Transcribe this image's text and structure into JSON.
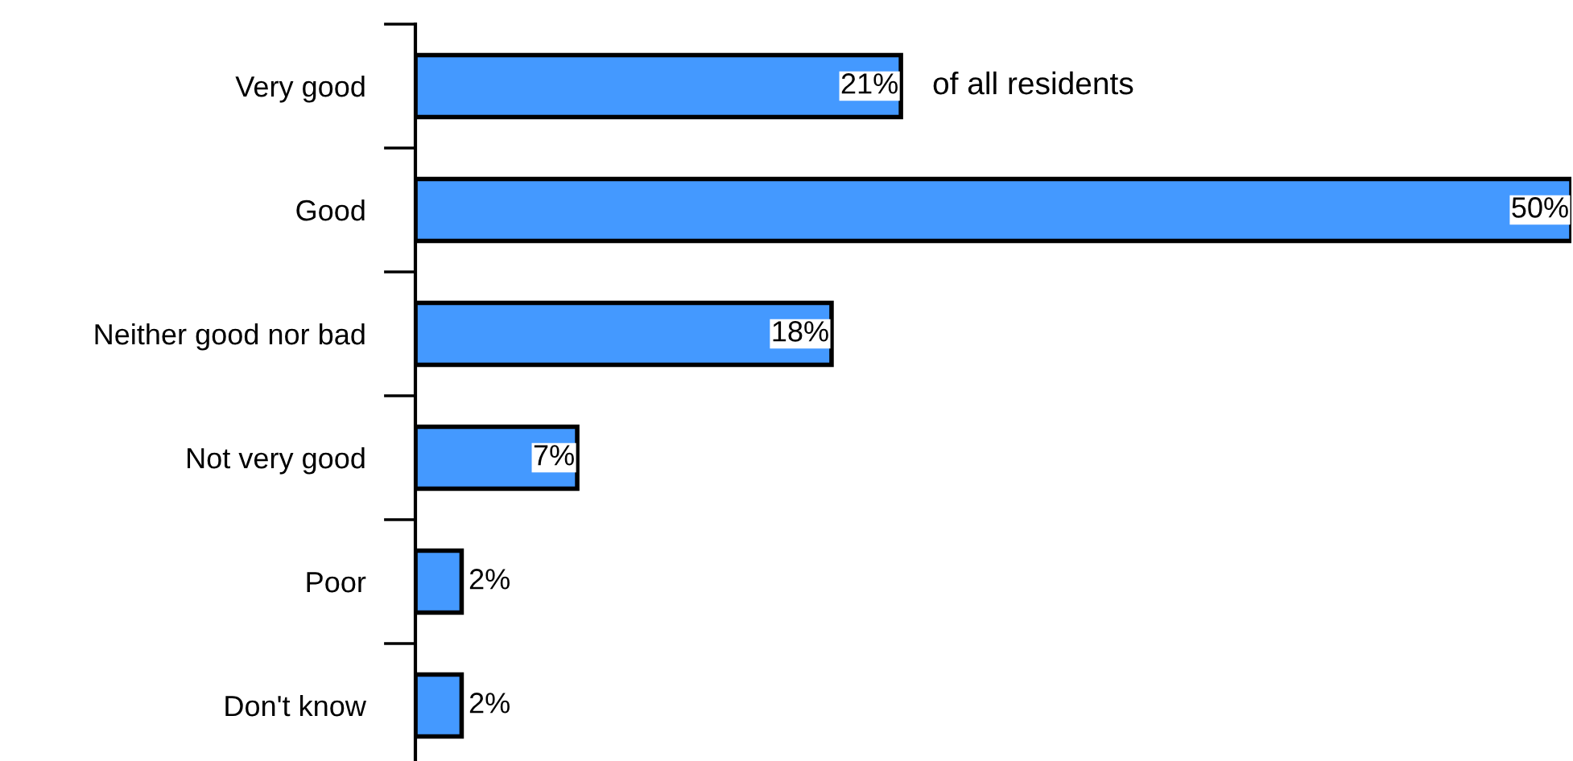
{
  "chart_data": {
    "type": "bar",
    "orientation": "horizontal",
    "categories": [
      "Very good",
      "Good",
      "Neither good nor bad",
      "Not very good",
      "Poor",
      "Don't know"
    ],
    "values": [
      21,
      50,
      18,
      7,
      2,
      2
    ],
    "color": "#4499ff",
    "data_labels": true,
    "value_labels": [
      "21%",
      "50%",
      "18%",
      "7%",
      "2%",
      "2%"
    ],
    "annotations": [
      {
        "text": "of all residents",
        "x": 21,
        "y": "Very good"
      }
    ],
    "tick_labels": "y",
    "grid": false,
    "legend": false
  }
}
